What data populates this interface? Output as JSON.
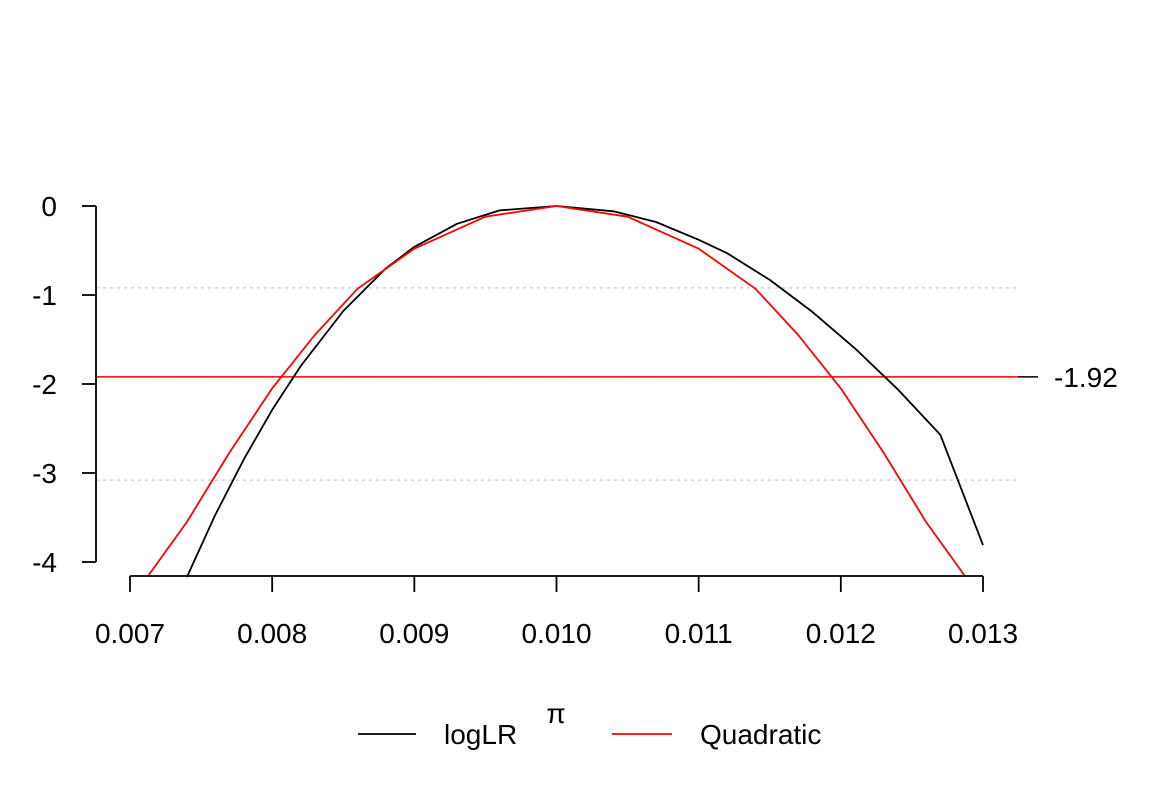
{
  "chart_data": {
    "type": "line",
    "title": "",
    "xlabel": "π",
    "ylabel": "",
    "xlim": [
      0.007,
      0.013
    ],
    "ylim": [
      -4,
      0
    ],
    "x_ticks": [
      "0.007",
      "0.008",
      "0.009",
      "0.010",
      "0.011",
      "0.012",
      "0.013"
    ],
    "y_ticks": [
      "0",
      "-1",
      "-2",
      "-3",
      "-4"
    ],
    "grid": "horizontal dotted at -0.92, -1.92, -3.08",
    "gridlines_y": [
      -0.92,
      -1.92,
      -3.08
    ],
    "reference_line": {
      "y": -1.92,
      "label": "-1.92",
      "color": "#ff0000"
    },
    "legend": {
      "placement": "bottom-center"
    },
    "series": [
      {
        "name": "logLR",
        "color": "#000000",
        "x": [
          0.0074,
          0.0076,
          0.0078,
          0.008,
          0.0082,
          0.0085,
          0.0088,
          0.009,
          0.0093,
          0.0096,
          0.01,
          0.0104,
          0.0107,
          0.011,
          0.0112,
          0.0115,
          0.0118,
          0.0121,
          0.0124,
          0.0127,
          0.013
        ],
        "y": [
          -4.17,
          -3.47,
          -2.85,
          -2.29,
          -1.8,
          -1.18,
          -0.7,
          -0.46,
          -0.2,
          -0.05,
          0,
          -0.06,
          -0.18,
          -0.38,
          -0.53,
          -0.83,
          -1.19,
          -1.6,
          -2.06,
          -2.57,
          -3.81
        ]
      },
      {
        "name": "Quadratic",
        "color": "#ff0000",
        "x": [
          0.00713,
          0.0074,
          0.0077,
          0.008,
          0.0083,
          0.0086,
          0.009,
          0.0095,
          0.01,
          0.0105,
          0.011,
          0.0114,
          0.0117,
          0.012,
          0.0123,
          0.0126,
          0.01287
        ],
        "y": [
          -4.15,
          -3.55,
          -2.77,
          -2.05,
          -1.45,
          -0.93,
          -0.48,
          -0.12,
          0,
          -0.12,
          -0.48,
          -0.93,
          -1.45,
          -2.05,
          -2.77,
          -3.55,
          -4.15
        ]
      }
    ]
  }
}
